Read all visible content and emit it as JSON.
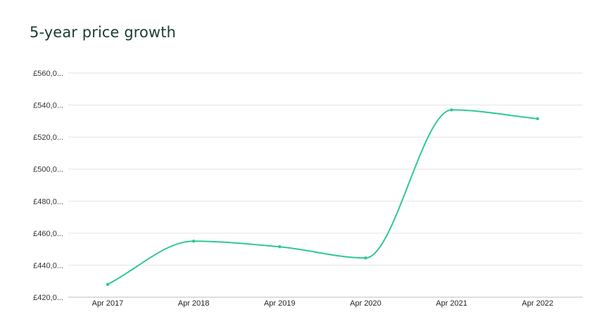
{
  "chart_data": {
    "type": "line",
    "title": "5-year price growth",
    "categories": [
      "Apr 2017",
      "Apr 2018",
      "Apr 2019",
      "Apr 2020",
      "Apr 2021",
      "Apr 2022"
    ],
    "series": [
      {
        "values": [
          428000,
          455000,
          451500,
          444500,
          537000,
          531500
        ]
      }
    ],
    "ylim": [
      420000,
      560000
    ],
    "yticks": [
      560000,
      540000,
      520000,
      500000,
      480000,
      460000,
      440000,
      420000
    ],
    "ytick_labels": [
      "£560,0...",
      "£540,0...",
      "£520,0...",
      "£500,0...",
      "£480,0...",
      "£460,0...",
      "£440,0...",
      "£420,0..."
    ],
    "grid": true,
    "legend": "none",
    "colors": {
      "line": "#2ec79a",
      "grid": "#e3e3e3",
      "title": "#1d3b36"
    }
  }
}
